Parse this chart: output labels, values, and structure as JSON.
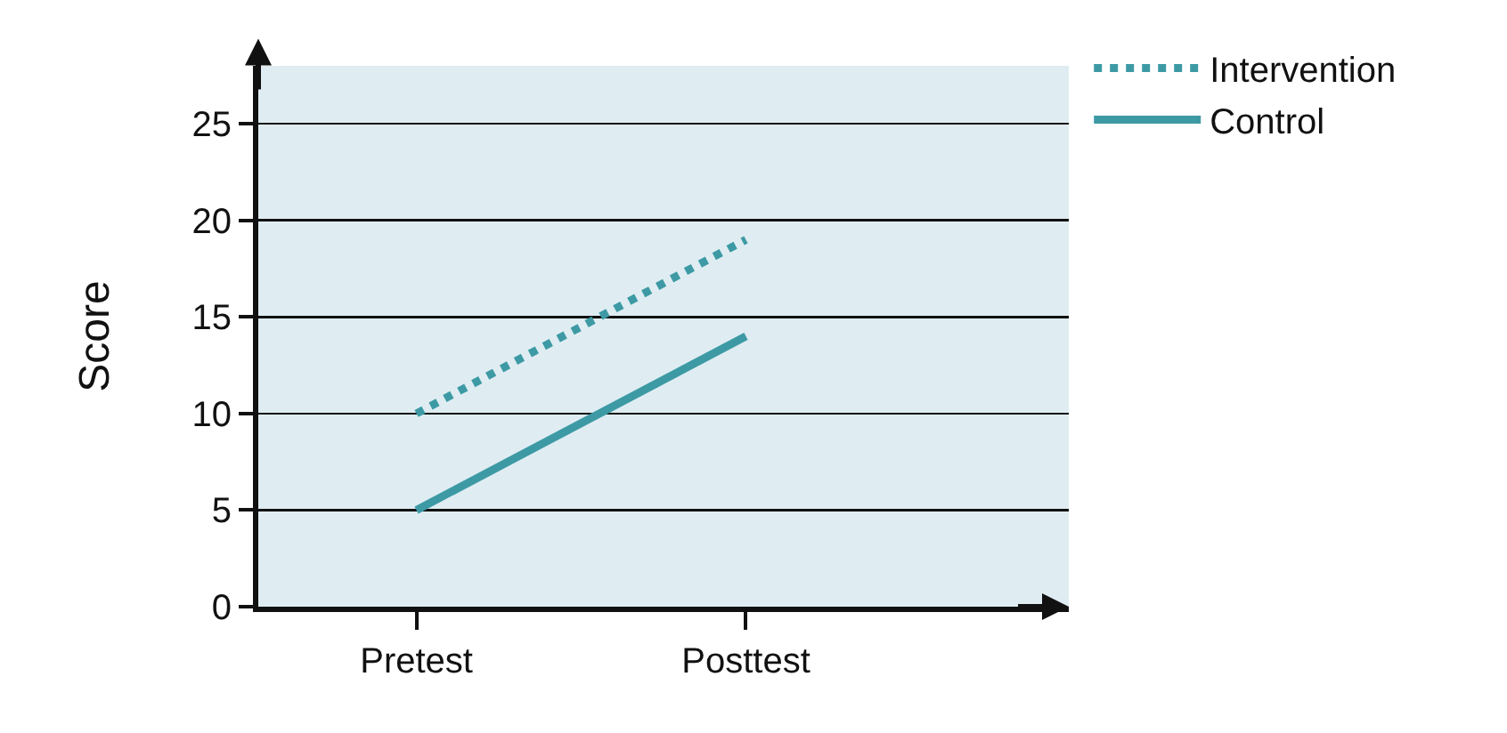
{
  "chart_data": {
    "type": "line",
    "ylabel": "Score",
    "categories": [
      "Pretest",
      "Posttest"
    ],
    "series": [
      {
        "name": "Intervention",
        "color": "#3d9aa5",
        "values": [
          10,
          19
        ],
        "line_style": "dotted"
      },
      {
        "name": "Control",
        "color": "#3d9aa5",
        "values": [
          5,
          14
        ],
        "line_style": "solid"
      }
    ],
    "ylim": [
      0,
      28
    ],
    "yticks": [
      0,
      5,
      10,
      15,
      20,
      25
    ],
    "grid": "y",
    "legend": "top right",
    "marker": "none"
  }
}
